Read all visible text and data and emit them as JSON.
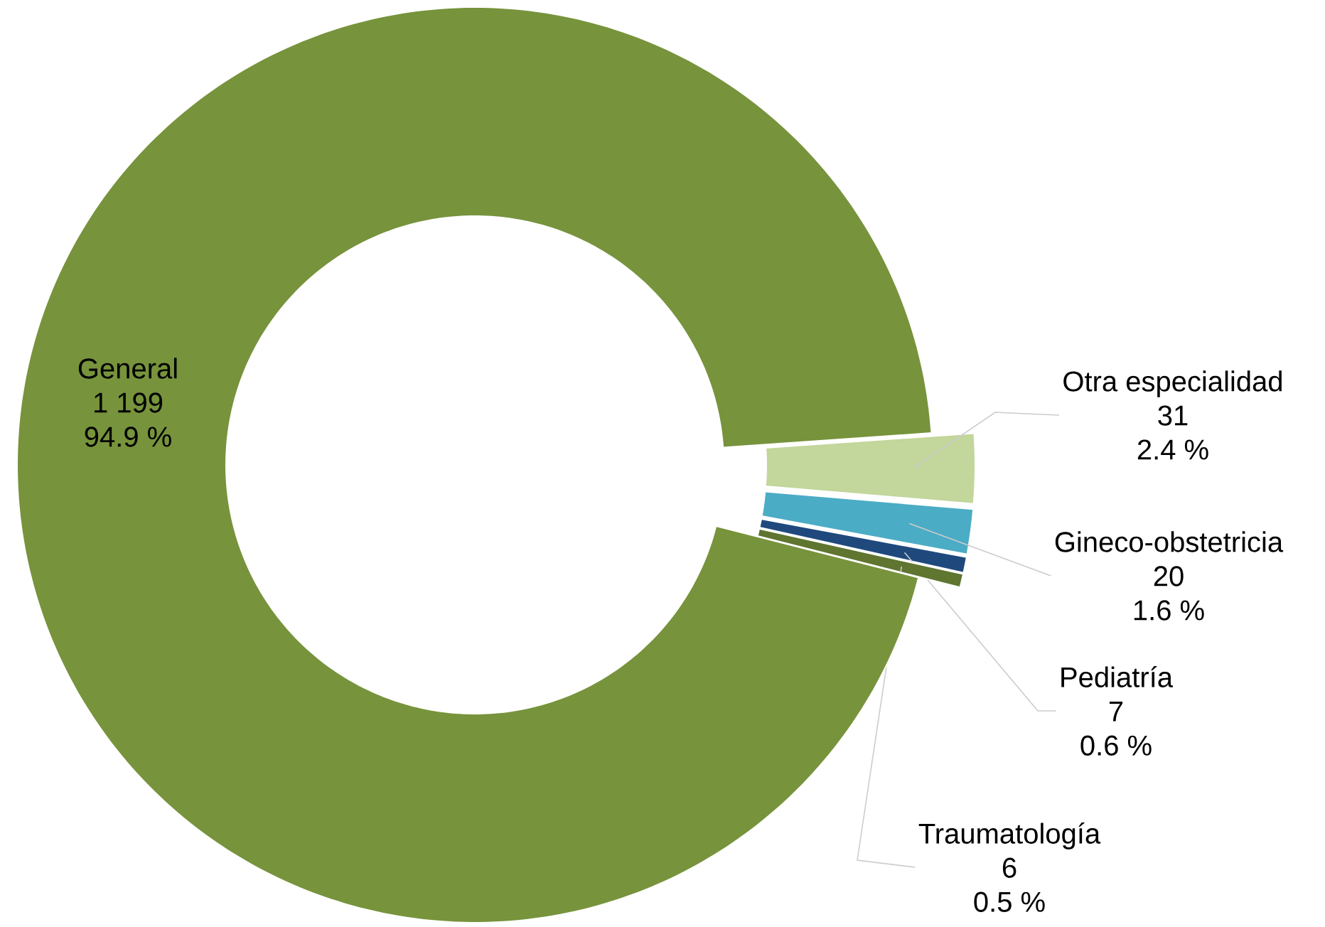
{
  "chart_data": {
    "type": "donut",
    "categories": [
      "Otra especialidad",
      "Gineco-obstetricia",
      "Pediatría",
      "Traumatología",
      "General"
    ],
    "values": [
      31,
      20,
      7,
      6,
      1199
    ],
    "colors": [
      "#c3d69b",
      "#4bacc6",
      "#1f497d",
      "#5f7530",
      "#77933c"
    ],
    "value_labels": [
      "31",
      "20",
      "7",
      "6",
      "1 199"
    ],
    "annotations": [
      {
        "text": "2.4 %",
        "x": "Otra especialidad"
      },
      {
        "text": "1.6 %",
        "x": "Gineco-obstetricia"
      },
      {
        "text": "0.6 %",
        "x": "Pediatría"
      },
      {
        "text": "0.5 %",
        "x": "Traumatología"
      },
      {
        "text": "94.9 %",
        "x": "General"
      }
    ]
  }
}
